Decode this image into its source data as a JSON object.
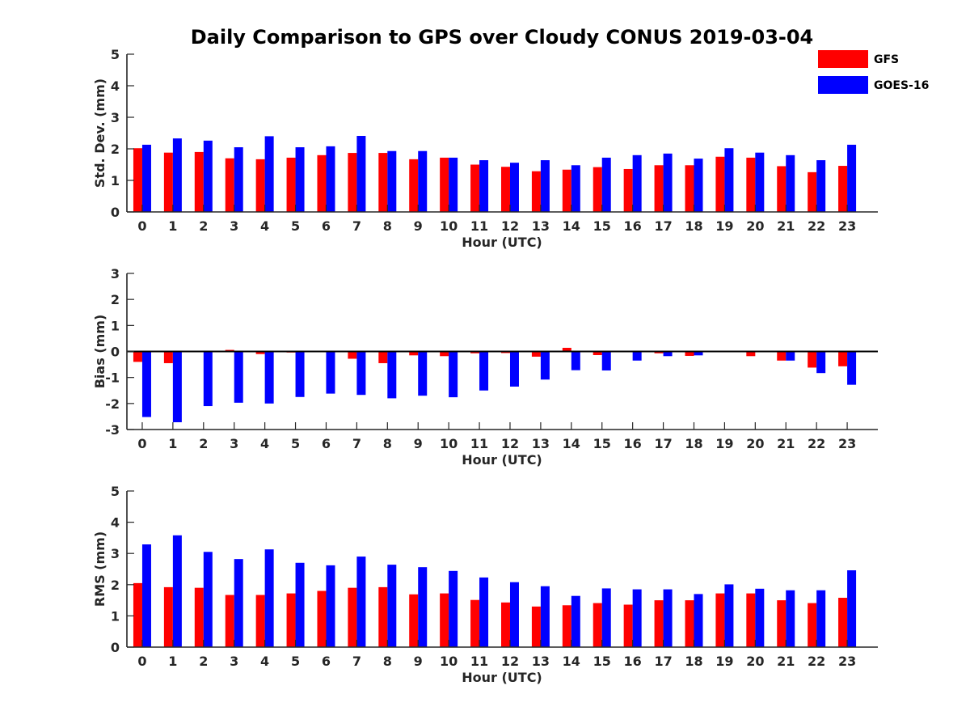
{
  "figure": {
    "title": "Daily Comparison to GPS over Cloudy CONUS 2019-03-04"
  },
  "legend": {
    "placement": "top-right",
    "entries": [
      {
        "label": "GFS",
        "color": "#ff0000"
      },
      {
        "label": "GOES-16",
        "color": "#0000ff"
      }
    ]
  },
  "chart_data": [
    {
      "type": "bar",
      "title": "Daily Comparison to GPS over Cloudy CONUS 2019-03-04",
      "xlabel": "Hour (UTC)",
      "ylabel": "Std. Dev. (mm)",
      "ylim": [
        0,
        5
      ],
      "yticks": [
        0,
        1,
        2,
        3,
        4,
        5
      ],
      "categories": [
        "0",
        "1",
        "2",
        "3",
        "4",
        "5",
        "6",
        "7",
        "8",
        "9",
        "10",
        "11",
        "12",
        "13",
        "14",
        "15",
        "16",
        "17",
        "18",
        "19",
        "20",
        "21",
        "22",
        "23"
      ],
      "series": [
        {
          "name": "GFS",
          "color": "#ff0000",
          "values": [
            2.02,
            1.88,
            1.9,
            1.7,
            1.67,
            1.72,
            1.8,
            1.87,
            1.87,
            1.67,
            1.72,
            1.5,
            1.43,
            1.29,
            1.34,
            1.42,
            1.36,
            1.48,
            1.48,
            1.75,
            1.72,
            1.45,
            1.26,
            1.46
          ]
        },
        {
          "name": "GOES-16",
          "color": "#0000ff",
          "values": [
            2.13,
            2.33,
            2.26,
            2.05,
            2.4,
            2.05,
            2.08,
            2.41,
            1.93,
            1.93,
            1.72,
            1.64,
            1.56,
            1.64,
            1.48,
            1.72,
            1.8,
            1.85,
            1.69,
            2.02,
            1.88,
            1.8,
            1.64,
            2.13
          ]
        }
      ]
    },
    {
      "type": "bar",
      "xlabel": "Hour (UTC)",
      "ylabel": "Bias (mm)",
      "ylim": [
        -3,
        3
      ],
      "yticks": [
        -3,
        -2,
        -1,
        0,
        1,
        2,
        3
      ],
      "categories": [
        "0",
        "1",
        "2",
        "3",
        "4",
        "5",
        "6",
        "7",
        "8",
        "9",
        "10",
        "11",
        "12",
        "13",
        "14",
        "15",
        "16",
        "17",
        "18",
        "19",
        "20",
        "21",
        "22",
        "23"
      ],
      "series": [
        {
          "name": "GFS",
          "color": "#ff0000",
          "values": [
            -0.4,
            -0.45,
            0.03,
            0.06,
            -0.1,
            -0.04,
            -0.02,
            -0.28,
            -0.45,
            -0.15,
            -0.18,
            -0.07,
            -0.06,
            -0.2,
            0.14,
            -0.14,
            -0.02,
            -0.07,
            -0.17,
            0.02,
            -0.18,
            -0.35,
            -0.62,
            -0.57
          ]
        },
        {
          "name": "GOES-16",
          "color": "#0000ff",
          "values": [
            -2.52,
            -2.72,
            -2.1,
            -1.97,
            -2.0,
            -1.75,
            -1.62,
            -1.67,
            -1.8,
            -1.7,
            -1.76,
            -1.5,
            -1.35,
            -1.08,
            -0.72,
            -0.73,
            -0.35,
            -0.18,
            -0.15,
            0.02,
            -0.02,
            -0.35,
            -0.83,
            -1.28
          ]
        }
      ]
    },
    {
      "type": "bar",
      "xlabel": "Hour (UTC)",
      "ylabel": "RMS (mm)",
      "ylim": [
        0,
        5
      ],
      "yticks": [
        0,
        1,
        2,
        3,
        4,
        5
      ],
      "categories": [
        "0",
        "1",
        "2",
        "3",
        "4",
        "5",
        "6",
        "7",
        "8",
        "9",
        "10",
        "11",
        "12",
        "13",
        "14",
        "15",
        "16",
        "17",
        "18",
        "19",
        "20",
        "21",
        "22",
        "23"
      ],
      "series": [
        {
          "name": "GFS",
          "color": "#ff0000",
          "values": [
            2.05,
            1.92,
            1.9,
            1.67,
            1.67,
            1.72,
            1.8,
            1.9,
            1.92,
            1.69,
            1.72,
            1.51,
            1.43,
            1.3,
            1.34,
            1.41,
            1.36,
            1.5,
            1.5,
            1.72,
            1.72,
            1.5,
            1.41,
            1.58
          ]
        },
        {
          "name": "GOES-16",
          "color": "#0000ff",
          "values": [
            3.29,
            3.58,
            3.05,
            2.82,
            3.13,
            2.7,
            2.62,
            2.9,
            2.64,
            2.56,
            2.44,
            2.23,
            2.08,
            1.95,
            1.64,
            1.88,
            1.85,
            1.85,
            1.7,
            2.01,
            1.87,
            1.82,
            1.82,
            2.46
          ]
        }
      ]
    }
  ]
}
